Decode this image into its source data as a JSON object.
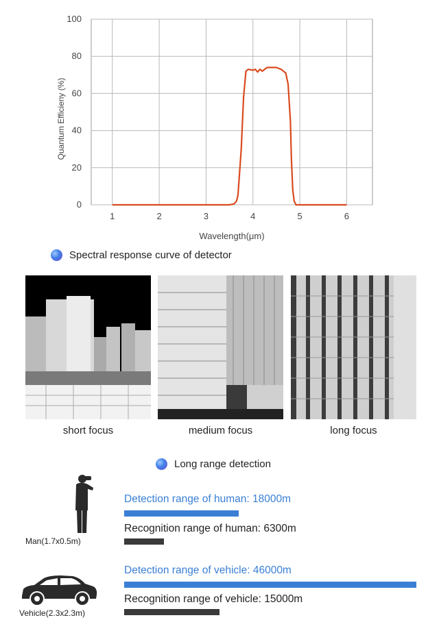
{
  "chart_data": {
    "type": "line",
    "xlabel": "Wavelength(μm)",
    "ylabel": "Quantum Efficieny (%)",
    "xlim": [
      0.55,
      6.55
    ],
    "ylim": [
      0,
      100
    ],
    "xticks": [
      "1",
      "2",
      "3",
      "4",
      "5",
      "6"
    ],
    "yticks": [
      "0",
      "20",
      "40",
      "60",
      "80",
      "100"
    ],
    "grid": true,
    "series": [
      {
        "color": "#d94a1e",
        "x": [
          1,
          3.5,
          3.6,
          3.65,
          3.68,
          3.75,
          3.8,
          3.85,
          3.9,
          4.0,
          4.05,
          4.1,
          4.15,
          4.2,
          4.3,
          4.4,
          4.5,
          4.6,
          4.7,
          4.75,
          4.8,
          4.82,
          4.85,
          4.88,
          4.92,
          6
        ],
        "y": [
          0,
          0,
          0.5,
          2,
          5,
          30,
          58,
          72,
          73,
          72.5,
          73,
          71.5,
          73,
          72,
          74,
          74,
          74,
          73,
          71,
          65,
          45,
          25,
          8,
          2,
          0,
          0
        ]
      }
    ]
  },
  "captions": {
    "spectral": "Spectral response curve of detector",
    "long_range": "Long range detection"
  },
  "icons": {
    "bullet": "sphere-bullet-icon",
    "man": "man-silhouette-icon",
    "vehicle": "car-silhouette-icon"
  },
  "thumbnails": [
    {
      "label": "short focus"
    },
    {
      "label": "medium focus"
    },
    {
      "label": "long focus"
    }
  ],
  "targets": {
    "man": "Man(1.7x0.5m)",
    "vehicle": "Vehicle(2.3x2.3m)"
  },
  "ranges": {
    "scale_max_m": 46000,
    "human_detection": {
      "label": "Detection range of human: 18000m",
      "value_m": 18000
    },
    "human_recognition": {
      "label": "Recognition range of human: 6300m",
      "value_m": 6300
    },
    "vehicle_detection": {
      "label": "Detection range of vehicle: 46000m",
      "value_m": 46000
    },
    "vehicle_recognition": {
      "label": "Recognition range of vehicle: 15000m",
      "value_m": 15000
    }
  },
  "colors": {
    "curve": "#d94a1e",
    "detection": "#3a7fd5",
    "recognition": "#3a3a3a"
  }
}
